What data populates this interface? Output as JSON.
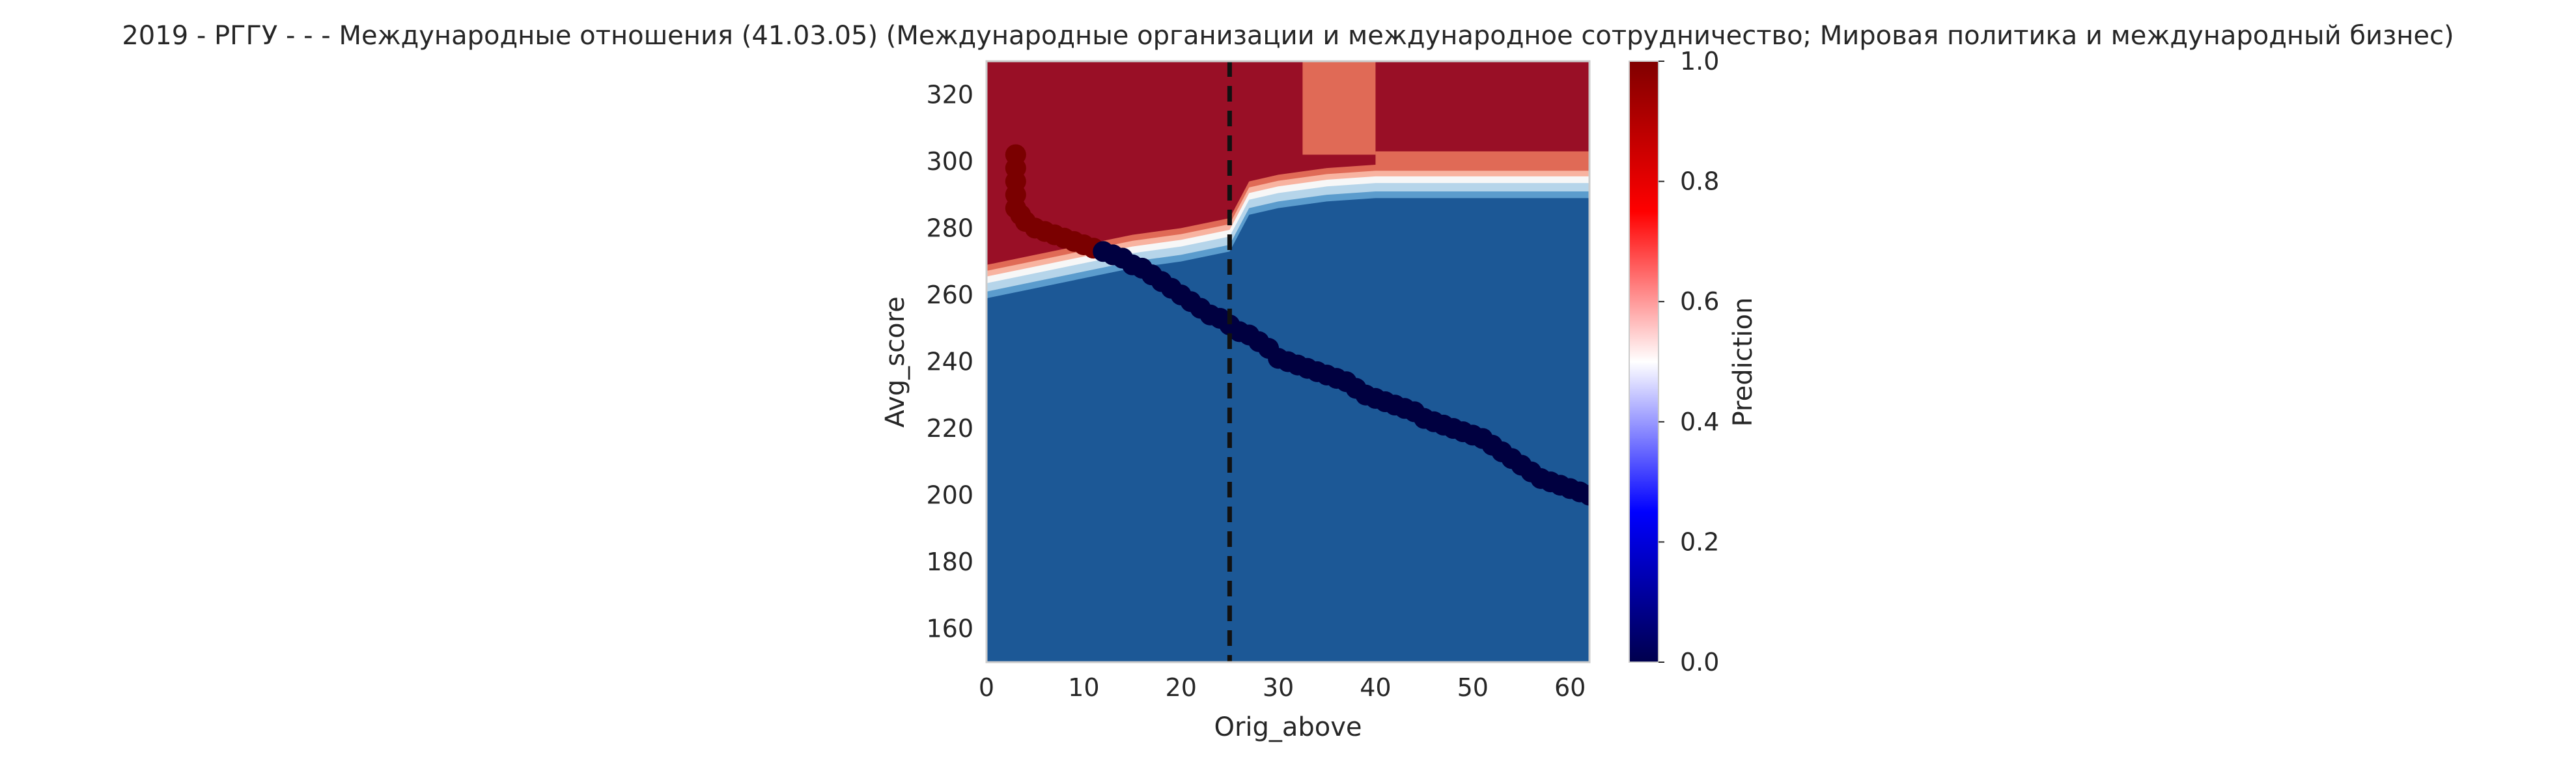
{
  "chart_data": {
    "type": "heatmap",
    "title": "2019 - РГГУ - - - Международные отношения (41.03.05) (Международные организации и международное сотрудничество; Мировая политика и международный бизнес)",
    "xlabel": "Orig_above",
    "ylabel": "Avg_score",
    "xlim": [
      0,
      62
    ],
    "ylim": [
      150,
      330
    ],
    "x_ticks": [
      0,
      10,
      20,
      30,
      40,
      50,
      60
    ],
    "y_ticks": [
      160,
      180,
      200,
      220,
      240,
      260,
      280,
      300,
      320
    ],
    "grid": false,
    "vertical_line": {
      "x": 25,
      "style": "dashed",
      "color": "#000000"
    },
    "colorbar": {
      "label": "Prediction",
      "range": [
        0,
        1
      ],
      "ticks": [
        0.0,
        0.2,
        0.4,
        0.6,
        0.8,
        1.0
      ],
      "tick_labels": [
        "0.0",
        "0.2",
        "0.4",
        "0.6",
        "0.8",
        "1.0"
      ],
      "colormap": "seismic"
    },
    "contour_colors": {
      "high": "#990f26",
      "mid_high": "#e06a56",
      "light_red": "#f8b3a0",
      "neutral": "#f7f7f7",
      "light_blue": "#b6d5ea",
      "mid_blue": "#5b9ccd",
      "low": "#1c5896"
    },
    "threshold_boundary": [
      {
        "x": 0,
        "y": 266
      },
      {
        "x": 5,
        "y": 269
      },
      {
        "x": 10,
        "y": 272
      },
      {
        "x": 15,
        "y": 275
      },
      {
        "x": 20,
        "y": 277
      },
      {
        "x": 25,
        "y": 280
      },
      {
        "x": 27,
        "y": 291
      },
      {
        "x": 30,
        "y": 293
      },
      {
        "x": 35,
        "y": 295
      },
      {
        "x": 40,
        "y": 296
      },
      {
        "x": 62,
        "y": 296
      }
    ],
    "series": [
      {
        "x": [
          3,
          3,
          3,
          3,
          3,
          3.5,
          4,
          5,
          6,
          7,
          8,
          9,
          10,
          11,
          12,
          13,
          14,
          15,
          16,
          17,
          18,
          19,
          20,
          21,
          22,
          23,
          24,
          25,
          26,
          27,
          28,
          29,
          30,
          31,
          32,
          33,
          34,
          35,
          36,
          37,
          38,
          39,
          40,
          41,
          42,
          43,
          44,
          45,
          46,
          47,
          48,
          49,
          50,
          51,
          52,
          53,
          54,
          55,
          56,
          57,
          58,
          59,
          60,
          61,
          62
        ],
        "y": [
          302,
          298,
          294,
          290,
          286,
          284,
          282,
          280,
          279,
          278,
          277,
          276,
          275,
          274,
          273,
          272,
          271,
          269,
          268,
          266,
          264,
          262,
          260,
          258,
          256,
          254,
          253,
          251,
          249,
          248,
          246,
          244,
          241,
          240,
          239,
          238,
          237,
          236,
          235,
          234,
          232,
          230,
          229,
          228,
          227,
          226,
          225,
          223,
          222,
          221,
          220,
          219,
          218,
          217,
          215,
          213,
          211,
          209,
          207,
          205,
          204,
          203,
          202,
          201,
          200
        ],
        "prediction": [
          1,
          1,
          1,
          1,
          1,
          1,
          1,
          1,
          1,
          1,
          1,
          1,
          1,
          1,
          0,
          0,
          0,
          0,
          0,
          0,
          0,
          0,
          0,
          0,
          0,
          0,
          0,
          0,
          0,
          0,
          0,
          0,
          0,
          0,
          0,
          0,
          0,
          0,
          0,
          0,
          0,
          0,
          0,
          0,
          0,
          0,
          0,
          0,
          0,
          0,
          0,
          0,
          0,
          0,
          0,
          0,
          0,
          0,
          0,
          0,
          0,
          0,
          0,
          0,
          0
        ]
      }
    ]
  }
}
